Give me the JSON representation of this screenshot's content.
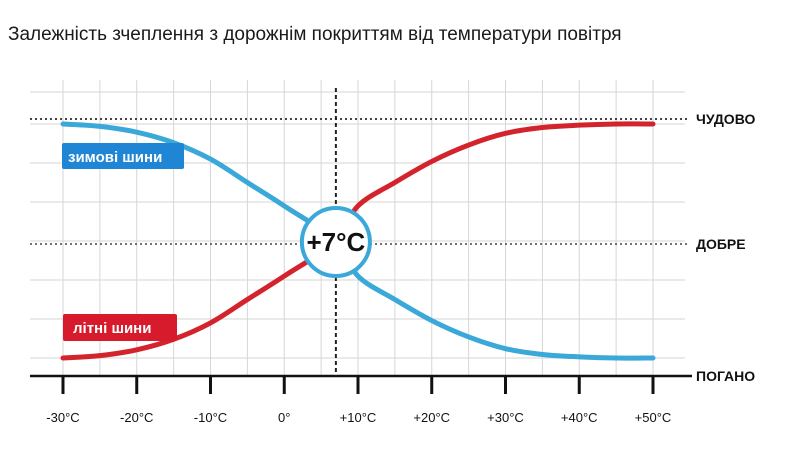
{
  "chart_data": {
    "type": "line",
    "title": "Залежність зчеплення з дорожнім покриттям від температури повітря",
    "x_ticks": [
      "-30°C",
      "-20°C",
      "-10°C",
      "0°",
      "+10°C",
      "+20°C",
      "+30°C",
      "+40°C",
      "+50°C"
    ],
    "x_tick_values": [
      -30,
      -20,
      -10,
      0,
      10,
      20,
      30,
      40,
      50
    ],
    "xlim": [
      -30,
      50
    ],
    "y_levels": [
      {
        "label": "ПОГАНО",
        "value": 0
      },
      {
        "label": "ДОБРЕ",
        "value": 1
      },
      {
        "label": "ЧУДОВО",
        "value": 2
      }
    ],
    "ylim": [
      0,
      2
    ],
    "grid": true,
    "crossover": {
      "x": 7,
      "y": 1,
      "label": "+7°C"
    },
    "series": [
      {
        "name": "зимові шини",
        "color": "#3aa8d8",
        "label_color": "#1f86d6",
        "x": [
          -30,
          -25,
          -20,
          -15,
          -10,
          -5,
          0,
          7,
          10,
          15,
          20,
          25,
          30,
          35,
          40,
          45,
          50
        ],
        "y": [
          2.0,
          1.98,
          1.93,
          1.84,
          1.7,
          1.5,
          1.3,
          1.0,
          0.7,
          0.5,
          0.32,
          0.18,
          0.08,
          0.03,
          0.01,
          0.0,
          0.0
        ]
      },
      {
        "name": "літні шини",
        "color": "#d3242e",
        "label_color": "#d81b2c",
        "x": [
          -30,
          -25,
          -20,
          -15,
          -10,
          -5,
          0,
          7,
          10,
          15,
          20,
          25,
          30,
          35,
          40,
          45,
          50
        ],
        "y": [
          0.0,
          0.02,
          0.07,
          0.16,
          0.3,
          0.5,
          0.7,
          1.0,
          1.3,
          1.5,
          1.68,
          1.82,
          1.92,
          1.97,
          1.99,
          2.0,
          2.0
        ]
      }
    ]
  }
}
